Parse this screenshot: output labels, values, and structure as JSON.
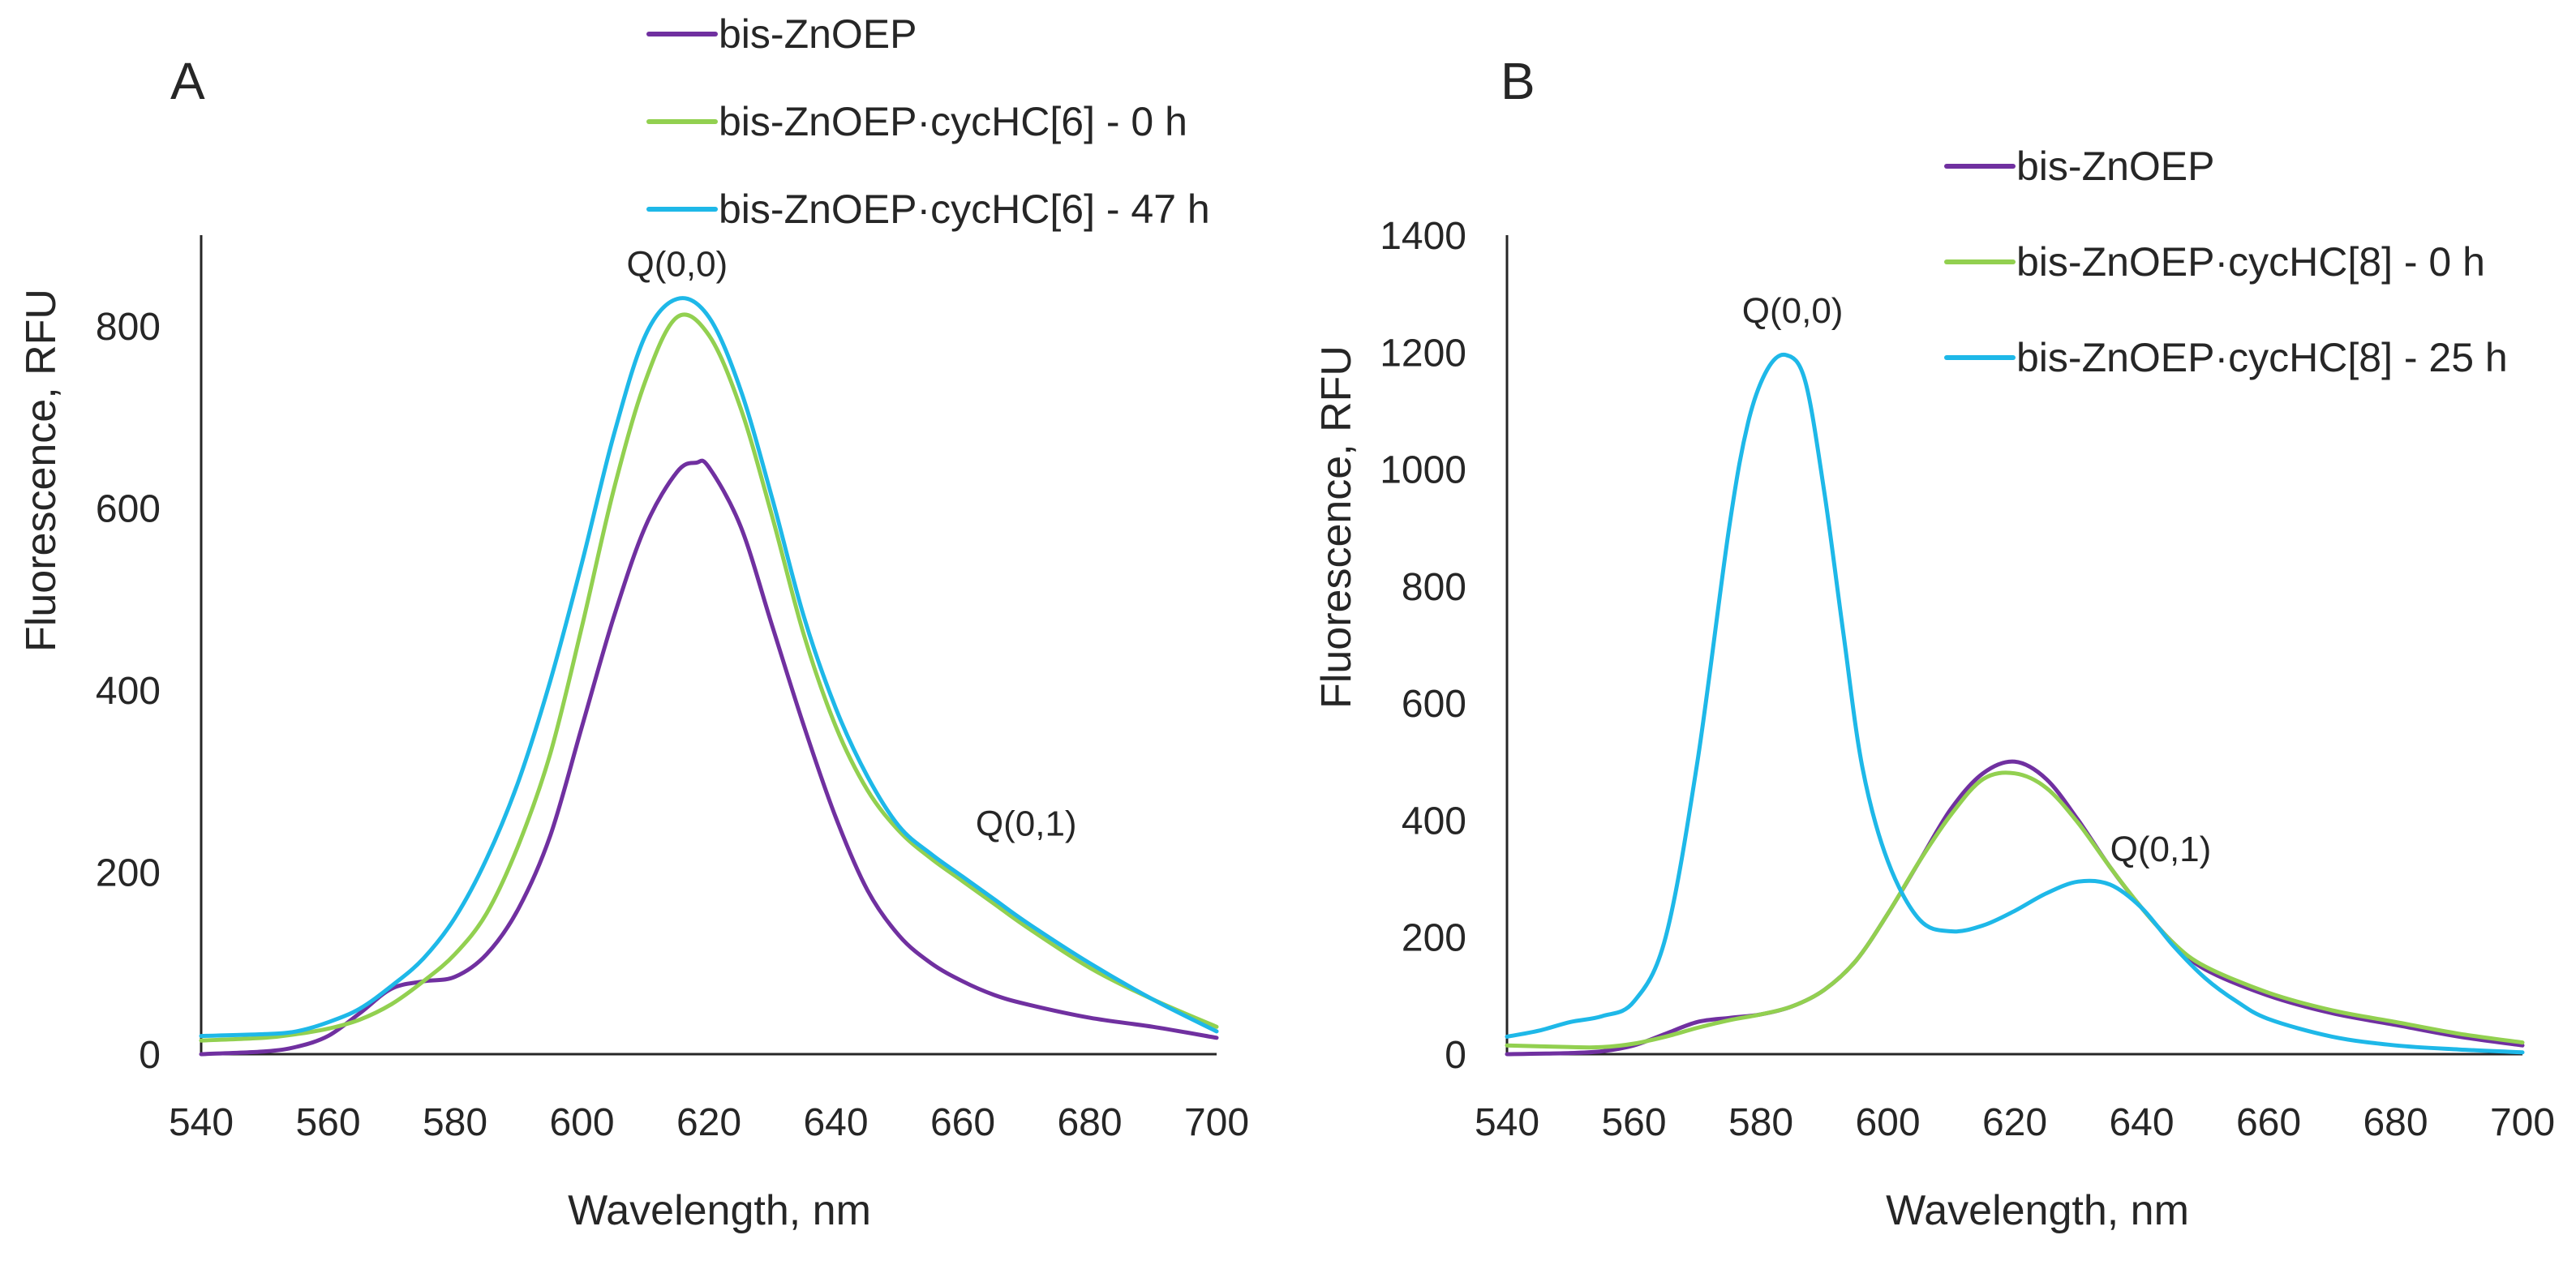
{
  "figure": {
    "colors": {
      "purple": "#7030a0",
      "green": "#92d050",
      "blue": "#1eb8e8",
      "axis": "#262626"
    }
  },
  "chart_data": [
    {
      "type": "line",
      "panel_label": "A",
      "xlabel": "Wavelength, nm",
      "ylabel": "Fluorescence, RFU",
      "xlim": [
        540,
        700
      ],
      "ylim": [
        0,
        900
      ],
      "x_ticks": [
        "540",
        "560",
        "580",
        "600",
        "620",
        "640",
        "660",
        "680",
        "700"
      ],
      "y_ticks": [
        "0",
        "200",
        "400",
        "600",
        "800"
      ],
      "grid": false,
      "legend_position": "top-right",
      "annotations": [
        {
          "text": "Q(0,0)",
          "x": 615,
          "y": 855
        },
        {
          "text": "Q(0,1)",
          "x": 670,
          "y": 240
        }
      ],
      "series": [
        {
          "name": "bis-ZnOEP",
          "color": "#7030a0",
          "x": [
            540,
            550,
            555,
            560,
            565,
            570,
            575,
            580,
            585,
            590,
            595,
            600,
            605,
            610,
            615,
            618,
            620,
            625,
            630,
            635,
            640,
            645,
            650,
            655,
            660,
            665,
            670,
            680,
            690,
            700
          ],
          "y": [
            0,
            3,
            8,
            20,
            45,
            72,
            80,
            85,
            110,
            160,
            240,
            360,
            480,
            580,
            640,
            650,
            645,
            580,
            470,
            360,
            260,
            180,
            130,
            100,
            80,
            65,
            55,
            40,
            30,
            18
          ]
        },
        {
          "name": "bis-ZnOEP·cycHC[6] - 0 h",
          "color": "#92d050",
          "x": [
            540,
            550,
            555,
            560,
            565,
            570,
            575,
            580,
            585,
            590,
            595,
            600,
            605,
            610,
            615,
            620,
            625,
            630,
            635,
            640,
            645,
            650,
            655,
            660,
            665,
            670,
            680,
            690,
            700
          ],
          "y": [
            15,
            18,
            22,
            28,
            38,
            55,
            80,
            110,
            155,
            230,
            330,
            470,
            620,
            740,
            810,
            790,
            710,
            590,
            460,
            360,
            290,
            245,
            215,
            190,
            165,
            140,
            95,
            60,
            30
          ]
        },
        {
          "name": "bis-ZnOEP·cycHC[6] - 47 h",
          "color": "#1eb8e8",
          "x": [
            540,
            550,
            555,
            560,
            565,
            570,
            575,
            580,
            585,
            590,
            595,
            600,
            605,
            610,
            615,
            620,
            625,
            630,
            635,
            640,
            645,
            650,
            655,
            660,
            665,
            670,
            680,
            690,
            700
          ],
          "y": [
            20,
            22,
            25,
            35,
            50,
            75,
            105,
            150,
            215,
            300,
            410,
            540,
            680,
            790,
            830,
            810,
            730,
            610,
            480,
            380,
            305,
            250,
            220,
            195,
            170,
            145,
            100,
            60,
            25
          ]
        }
      ]
    },
    {
      "type": "line",
      "panel_label": "B",
      "xlabel": "Wavelength, nm",
      "ylabel": "Fluorescence, RFU",
      "xlim": [
        540,
        700
      ],
      "ylim": [
        0,
        1400
      ],
      "x_ticks": [
        "540",
        "560",
        "580",
        "600",
        "620",
        "640",
        "660",
        "680",
        "700"
      ],
      "y_ticks": [
        "0",
        "200",
        "400",
        "600",
        "800",
        "1000",
        "1200",
        "1400"
      ],
      "grid": false,
      "legend_position": "top-right",
      "annotations": [
        {
          "text": "Q(0,0)",
          "x": 585,
          "y": 1250
        },
        {
          "text": "Q(0,1)",
          "x": 643,
          "y": 330
        }
      ],
      "series": [
        {
          "name": "bis-ZnOEP",
          "color": "#7030a0",
          "x": [
            540,
            550,
            555,
            560,
            565,
            570,
            575,
            580,
            585,
            590,
            595,
            600,
            605,
            610,
            615,
            620,
            625,
            630,
            635,
            640,
            645,
            650,
            660,
            670,
            680,
            690,
            700
          ],
          "y": [
            0,
            2,
            5,
            15,
            35,
            55,
            62,
            68,
            82,
            110,
            160,
            240,
            330,
            420,
            480,
            500,
            470,
            400,
            320,
            250,
            190,
            145,
            100,
            70,
            50,
            30,
            15
          ]
        },
        {
          "name": "bis-ZnOEP·cycHC[8] - 0 h",
          "color": "#92d050",
          "x": [
            540,
            550,
            555,
            560,
            565,
            570,
            575,
            580,
            585,
            590,
            595,
            600,
            605,
            610,
            615,
            620,
            625,
            630,
            635,
            640,
            645,
            650,
            660,
            670,
            680,
            690,
            700
          ],
          "y": [
            15,
            12,
            12,
            18,
            30,
            45,
            58,
            68,
            82,
            110,
            160,
            240,
            330,
            410,
            470,
            480,
            455,
            395,
            320,
            250,
            190,
            150,
            105,
            75,
            55,
            35,
            20
          ]
        },
        {
          "name": "bis-ZnOEP·cycHC[8] - 25 h",
          "color": "#1eb8e8",
          "x": [
            540,
            545,
            550,
            555,
            560,
            565,
            570,
            575,
            578,
            581,
            584,
            587,
            590,
            593,
            596,
            600,
            605,
            610,
            615,
            620,
            625,
            630,
            635,
            640,
            645,
            650,
            655,
            660,
            670,
            680,
            690,
            700
          ],
          "y": [
            30,
            40,
            55,
            65,
            90,
            200,
            500,
            900,
            1080,
            1170,
            1195,
            1150,
            960,
            720,
            490,
            330,
            230,
            210,
            220,
            245,
            275,
            295,
            290,
            250,
            185,
            130,
            90,
            60,
            30,
            15,
            8,
            3
          ]
        }
      ]
    }
  ]
}
